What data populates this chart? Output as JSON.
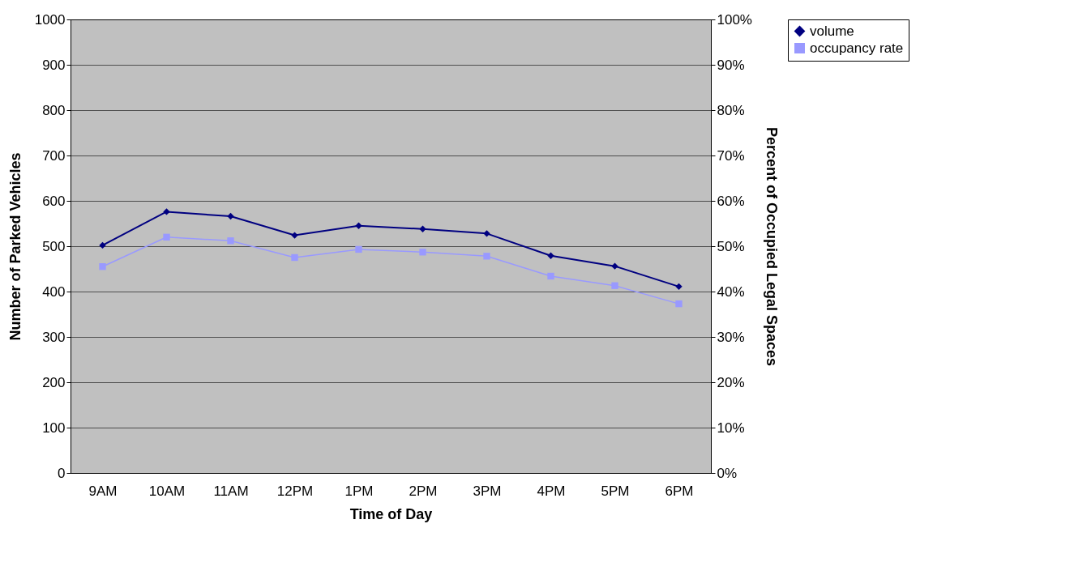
{
  "chart_data": {
    "type": "line",
    "xlabel": "Time of Day",
    "ylabel": "Number of Parked Vehicles",
    "y2label": "Percent of Occupied Legal Spaces",
    "categories": [
      "9AM",
      "10AM",
      "11AM",
      "12PM",
      "1PM",
      "2PM",
      "3PM",
      "4PM",
      "5PM",
      "6PM"
    ],
    "series": [
      {
        "name": "volume",
        "color": "#000080",
        "marker": "diamond",
        "values": [
          502,
          576,
          566,
          524,
          545,
          538,
          528,
          479,
          456,
          411
        ]
      },
      {
        "name": "occupancy rate",
        "color": "#9999ff",
        "marker": "square",
        "axis": "y2",
        "values": [
          45.5,
          52,
          51.2,
          47.5,
          49.3,
          48.7,
          47.8,
          43.4,
          41.3,
          37.3
        ]
      }
    ],
    "ylim": [
      0,
      1000
    ],
    "yticks": [
      0,
      100,
      200,
      300,
      400,
      500,
      600,
      700,
      800,
      900,
      1000
    ],
    "y2lim": [
      0,
      100
    ],
    "y2ticks": [
      {
        "value": 0,
        "label": "0%"
      },
      {
        "value": 10,
        "label": "10%"
      },
      {
        "value": 20,
        "label": "20%"
      },
      {
        "value": 30,
        "label": "30%"
      },
      {
        "value": 40,
        "label": "40%"
      },
      {
        "value": 50,
        "label": "50%"
      },
      {
        "value": 60,
        "label": "60%"
      },
      {
        "value": 70,
        "label": "70%"
      },
      {
        "value": 80,
        "label": "80%"
      },
      {
        "value": 90,
        "label": "90%"
      },
      {
        "value": 100,
        "label": "100%"
      }
    ],
    "grid": "y",
    "legend": "right"
  }
}
